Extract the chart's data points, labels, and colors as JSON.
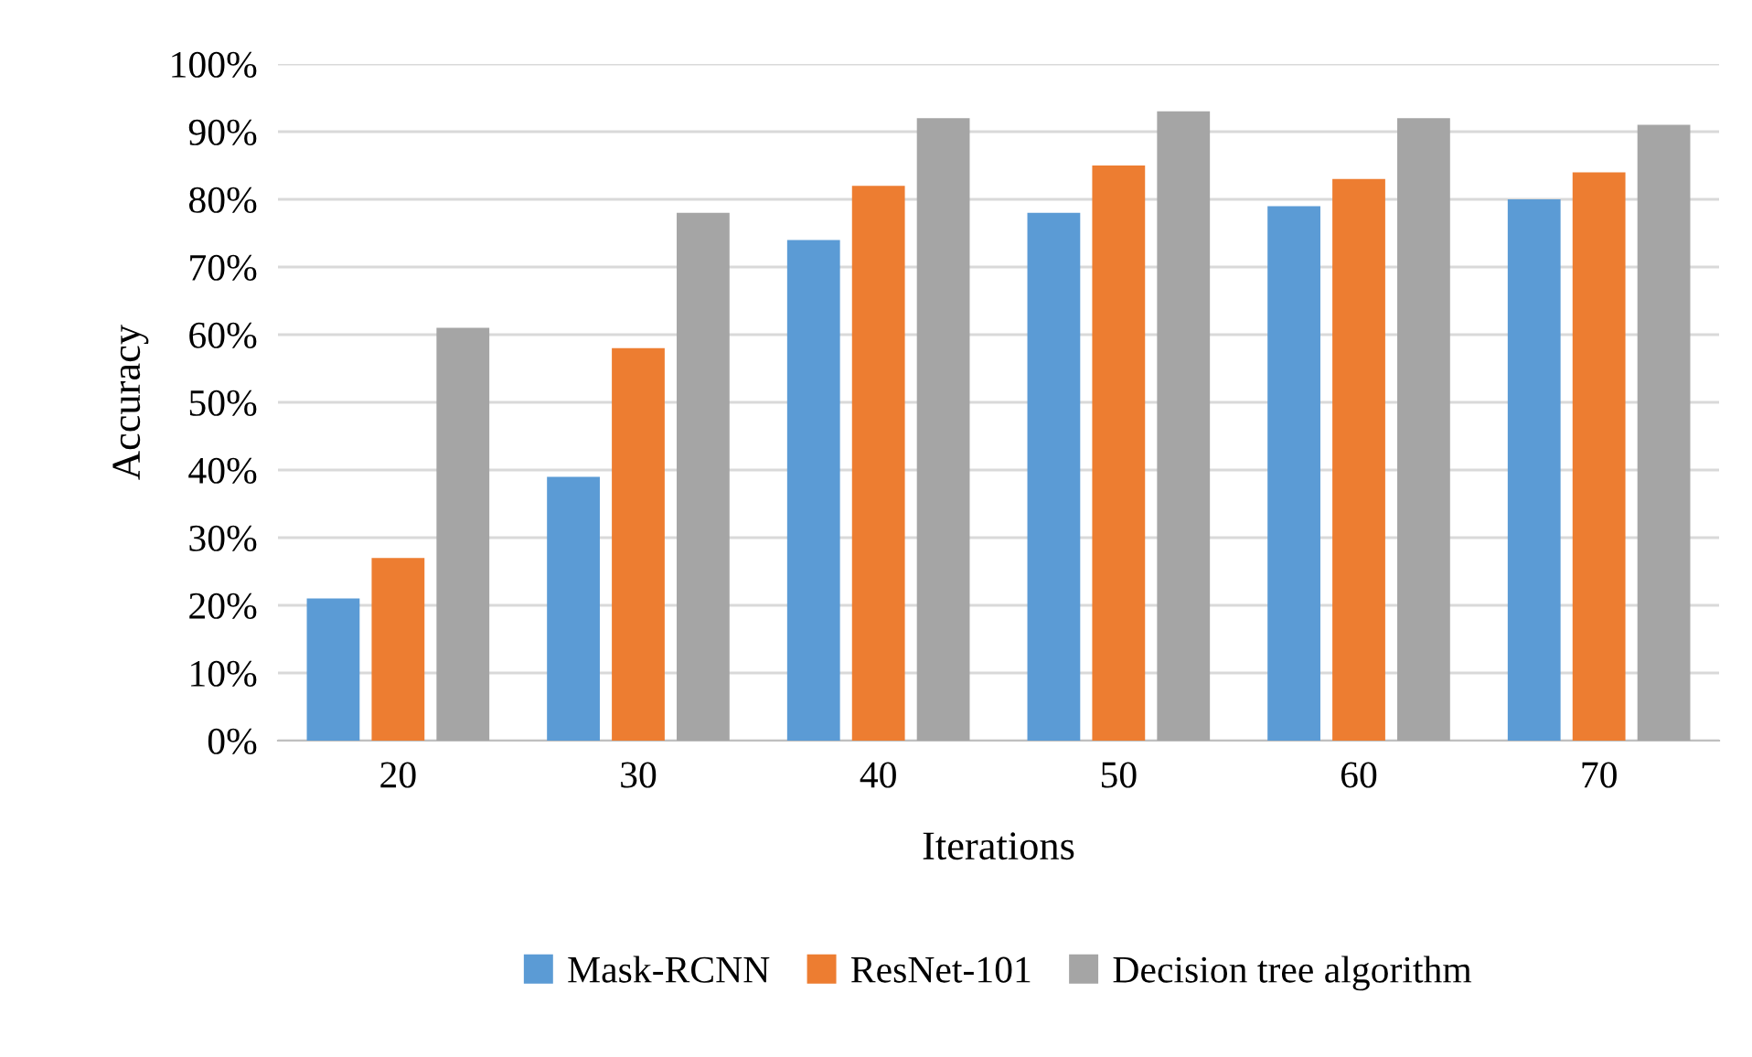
{
  "chart_data": {
    "type": "bar",
    "xlabel": "Iterations",
    "ylabel": "Accuracy",
    "categories": [
      "20",
      "30",
      "40",
      "50",
      "60",
      "70"
    ],
    "series": [
      {
        "name": "Mask-RCNN",
        "color": "#5b9bd5",
        "values": [
          21,
          39,
          74,
          78,
          79,
          80
        ]
      },
      {
        "name": "ResNet-101",
        "color": "#ed7d31",
        "values": [
          27,
          58,
          82,
          85,
          83,
          84
        ]
      },
      {
        "name": "Decision tree algorithm",
        "color": "#a5a5a5",
        "values": [
          61,
          78,
          92,
          93,
          92,
          91
        ]
      }
    ],
    "ylim": [
      0,
      100
    ],
    "yticks": [
      {
        "value": 0,
        "label": "0%"
      },
      {
        "value": 10,
        "label": "10%"
      },
      {
        "value": 20,
        "label": "20%"
      },
      {
        "value": 30,
        "label": "30%"
      },
      {
        "value": 40,
        "label": "40%"
      },
      {
        "value": 50,
        "label": "50%"
      },
      {
        "value": 60,
        "label": "60%"
      },
      {
        "value": 70,
        "label": "70%"
      },
      {
        "value": 80,
        "label": "80%"
      },
      {
        "value": 90,
        "label": "90%"
      },
      {
        "value": 100,
        "label": "100%"
      }
    ],
    "grid": "y",
    "legend": "bottom"
  }
}
